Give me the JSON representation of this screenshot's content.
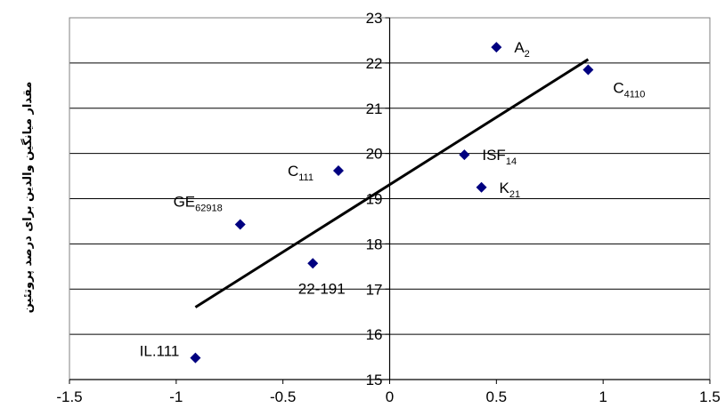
{
  "chart_data": {
    "type": "scatter",
    "title": "",
    "xlabel": "",
    "ylabel": "مقدار میانگین والدین برای درصد پروتئین",
    "xlim": [
      -1.5,
      1.5
    ],
    "ylim": [
      15,
      23
    ],
    "x_ticks": [
      "-1.5",
      "-1",
      "-0.5",
      "0",
      "0.5",
      "1",
      "1.5"
    ],
    "y_ticks": [
      "15",
      "16",
      "17",
      "18",
      "19",
      "20",
      "21",
      "22",
      "23"
    ],
    "grid": "horizontal",
    "legend": "none",
    "marker_color": "#000080",
    "trendline_color": "#000000",
    "points": [
      {
        "x": 0.5,
        "y": 22.35,
        "label": "A",
        "sub": "2"
      },
      {
        "x": 0.93,
        "y": 21.85,
        "label": "C",
        "sub": "4110"
      },
      {
        "x": 0.35,
        "y": 19.97,
        "label": "ISF",
        "sub": "14"
      },
      {
        "x": -0.24,
        "y": 19.62,
        "label": "C",
        "sub": "111"
      },
      {
        "x": 0.43,
        "y": 19.25,
        "label": "K",
        "sub": "21"
      },
      {
        "x": -0.7,
        "y": 18.43,
        "label": "GE",
        "sub": "62918"
      },
      {
        "x": -0.36,
        "y": 17.57,
        "label": "22-191",
        "sub": ""
      },
      {
        "x": -0.91,
        "y": 15.48,
        "label": "IL.111",
        "sub": ""
      }
    ],
    "trendline": {
      "x": [
        -0.91,
        0.93
      ],
      "y": [
        16.6,
        22.08
      ]
    }
  }
}
